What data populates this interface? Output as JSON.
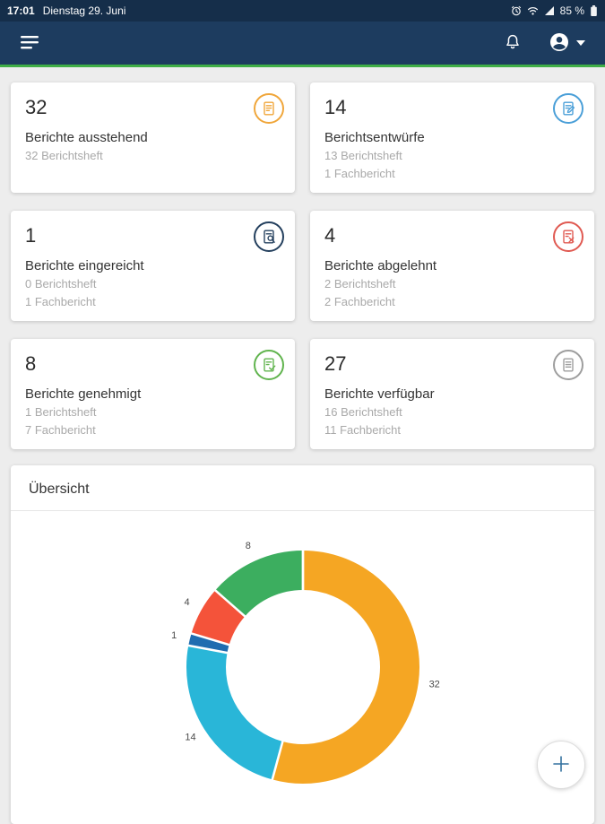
{
  "status_bar": {
    "time": "17:01",
    "date": "Dienstag 29. Juni",
    "battery": "85 %"
  },
  "colors": {
    "appbar": "#1d3c5f",
    "accent": "#3fae46"
  },
  "cards": [
    {
      "count": "32",
      "title": "Berichte ausstehend",
      "sub1": "32 Berichtsheft",
      "sub2": "",
      "icon": "pending-report-icon",
      "color": "#f0a63a"
    },
    {
      "count": "14",
      "title": "Berichtsentwürfe",
      "sub1": "13 Berichtsheft",
      "sub2": "1 Fachbericht",
      "icon": "draft-report-icon",
      "color": "#4a9fd8"
    },
    {
      "count": "1",
      "title": "Berichte eingereicht",
      "sub1": "0 Berichtsheft",
      "sub2": "1 Fachbericht",
      "icon": "submitted-report-icon",
      "color": "#24405e"
    },
    {
      "count": "4",
      "title": "Berichte abgelehnt",
      "sub1": "2 Berichtsheft",
      "sub2": "2 Fachbericht",
      "icon": "rejected-report-icon",
      "color": "#e05a52"
    },
    {
      "count": "8",
      "title": "Berichte genehmigt",
      "sub1": "1 Berichtsheft",
      "sub2": "7 Fachbericht",
      "icon": "approved-report-icon",
      "color": "#61b44e"
    },
    {
      "count": "27",
      "title": "Berichte verfügbar",
      "sub1": "16 Berichtsheft",
      "sub2": "11 Fachbericht",
      "icon": "available-report-icon",
      "color": "#9e9e9e"
    }
  ],
  "overview": {
    "title": "Übersicht"
  },
  "chart_data": {
    "type": "pie",
    "variant": "donut",
    "title": "Übersicht",
    "values": [
      32,
      14,
      1,
      4,
      8
    ],
    "labels": [
      "32",
      "14",
      "1",
      "4",
      "8"
    ],
    "colors": [
      "#f5a623",
      "#29b6d8",
      "#1f6cb0",
      "#f4533a",
      "#3cae5f"
    ],
    "start_angle_deg": 0,
    "direction": "clockwise",
    "legend": "none"
  }
}
